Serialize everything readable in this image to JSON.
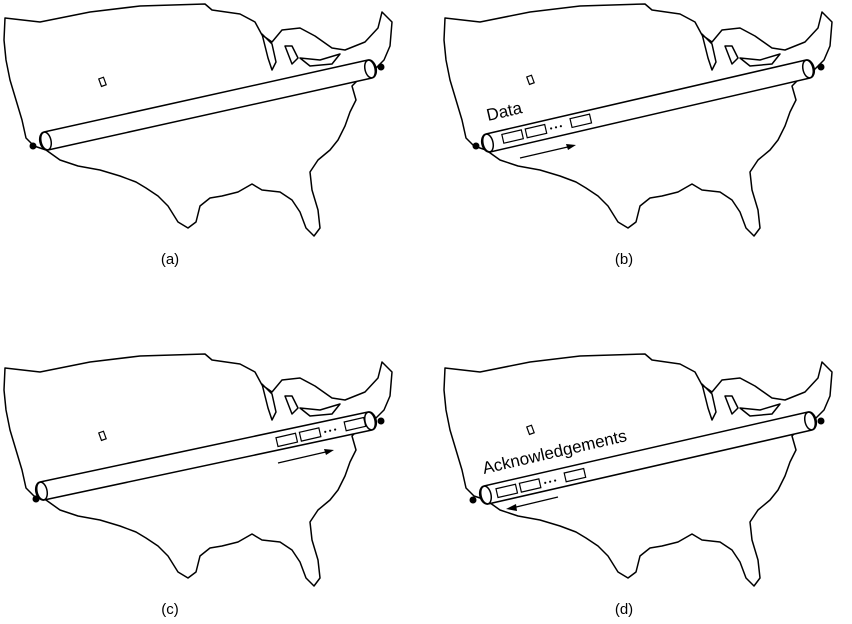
{
  "panels": [
    {
      "id": "a",
      "caption": "(a)",
      "packet_position": "none",
      "direction": "none",
      "flow_label": ""
    },
    {
      "id": "b",
      "caption": "(b)",
      "packet_position": "west-end",
      "direction": "east",
      "flow_label": "Data"
    },
    {
      "id": "c",
      "caption": "(c)",
      "packet_position": "east-end",
      "direction": "east",
      "flow_label": ""
    },
    {
      "id": "d",
      "caption": "(d)",
      "packet_position": "west-end",
      "direction": "west",
      "flow_label": "Acknowledgements"
    }
  ],
  "packet_ellipsis": "• • •",
  "icons": {
    "map": "usa-map-outline",
    "pipe": "pipe-link",
    "endpoint": "endpoint-dot",
    "arrow": "direction-arrow"
  }
}
